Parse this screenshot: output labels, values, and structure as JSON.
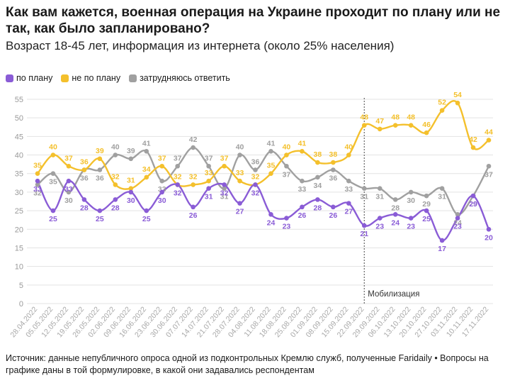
{
  "title": "Как вам кажется, военная операция на Украине проходит по плану или не так, как было запланировано?",
  "subtitle": "Возраст 18-45 лет, информация из интернета (около 25% населения)",
  "footer": "Источник: данные непубличного опроса одной из подконтрольных Кремлю служб, полученные Faridaily • Вопросы на графике даны в той формулировке, в какой они задавались респондентам",
  "chart_data": {
    "type": "line",
    "categories": [
      "28.04.2022",
      "05.05.2022",
      "12.05.2022",
      "19.05.2022",
      "26.05.2022",
      "02.06.2022",
      "09.06.2022",
      "16.06.2022",
      "23.06.2022",
      "30.06.2022",
      "07.07.2022",
      "14.07.2022",
      "21.07.2022",
      "28.07.2022",
      "04.08.2022",
      "11.08.2022",
      "18.08.2022",
      "25.08.2022",
      "01.09.2022",
      "08.09.2022",
      "15.09.2022",
      "22.09.2022",
      "29.09.2022",
      "06.10.2022",
      "13.10.2022",
      "20.10.2022",
      "27.10.2022",
      "03.11.2022",
      "10.11.2022",
      "17.11.2022"
    ],
    "series": [
      {
        "name": "по плану",
        "color": "#8a5cd6",
        "values": [
          33,
          25,
          33,
          28,
          25,
          28,
          30,
          25,
          30,
          32,
          26,
          31,
          32,
          27,
          32,
          24,
          23,
          26,
          28,
          26,
          27,
          21,
          23,
          24,
          23,
          25,
          17,
          23,
          29,
          20
        ]
      },
      {
        "name": "не по плану",
        "color": "#f4c02c",
        "values": [
          35,
          40,
          37,
          36,
          39,
          32,
          31,
          34,
          37,
          32,
          32,
          33,
          37,
          33,
          32,
          35,
          40,
          41,
          38,
          38,
          40,
          48,
          47,
          48,
          48,
          46,
          52,
          54,
          42,
          44
        ]
      },
      {
        "name": "затрудняюсь ответить",
        "color": "#a0a0a0",
        "values": [
          32,
          35,
          30,
          36,
          36,
          40,
          39,
          41,
          33,
          37,
          42,
          37,
          31,
          40,
          36,
          41,
          37,
          33,
          34,
          36,
          33,
          31,
          31,
          28,
          30,
          29,
          31,
          24,
          29,
          37
        ]
      }
    ],
    "ylim": [
      0,
      55
    ],
    "yticks": [
      0,
      5,
      10,
      15,
      20,
      25,
      30,
      35,
      40,
      45,
      50,
      55
    ],
    "grid": true,
    "legend_position": "top-left",
    "annotation": {
      "text": "Мобилизация",
      "at_category": "22.09.2022"
    }
  }
}
